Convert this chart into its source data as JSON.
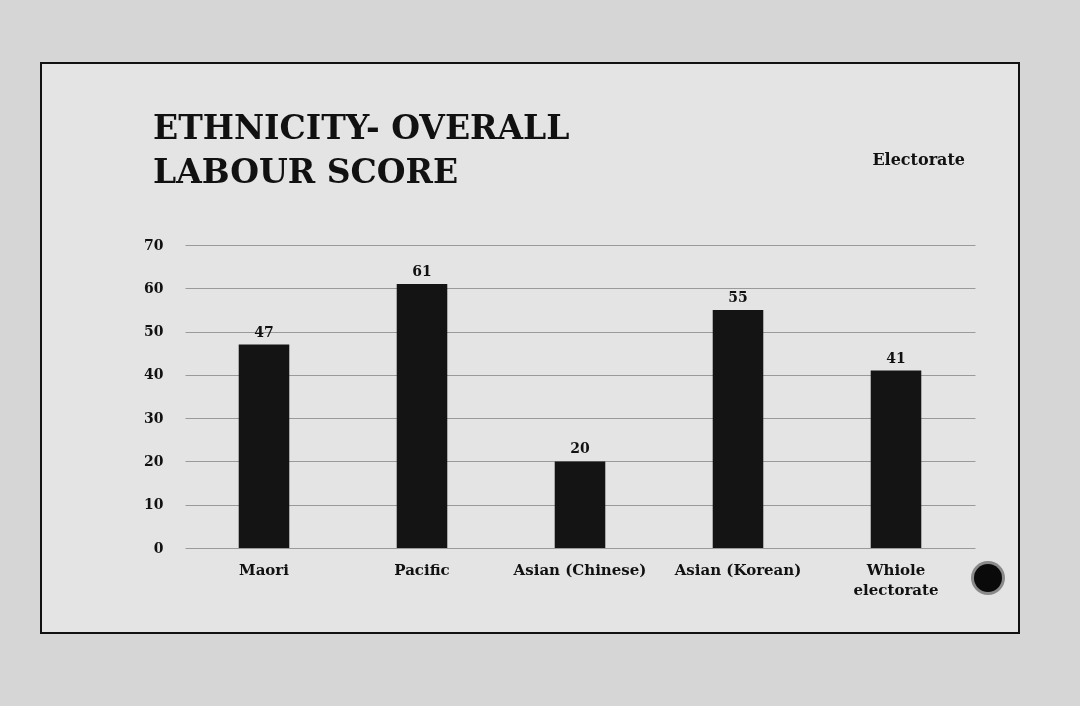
{
  "chart_data": {
    "type": "bar",
    "title": "ETHNICITY- OVERALL LABOUR SCORE",
    "annotations": [
      "Electorate"
    ],
    "categories": [
      "Maori",
      "Pacific",
      "Asian (Chinese)",
      "Asian (Korean)",
      "Whiole electorate"
    ],
    "values": [
      47,
      61,
      20,
      55,
      41
    ],
    "color": "#141414",
    "ylim": [
      0,
      70
    ],
    "yticks": [
      0,
      10,
      20,
      30,
      40,
      50,
      60,
      70
    ],
    "grid": "y",
    "data_labels": true
  }
}
